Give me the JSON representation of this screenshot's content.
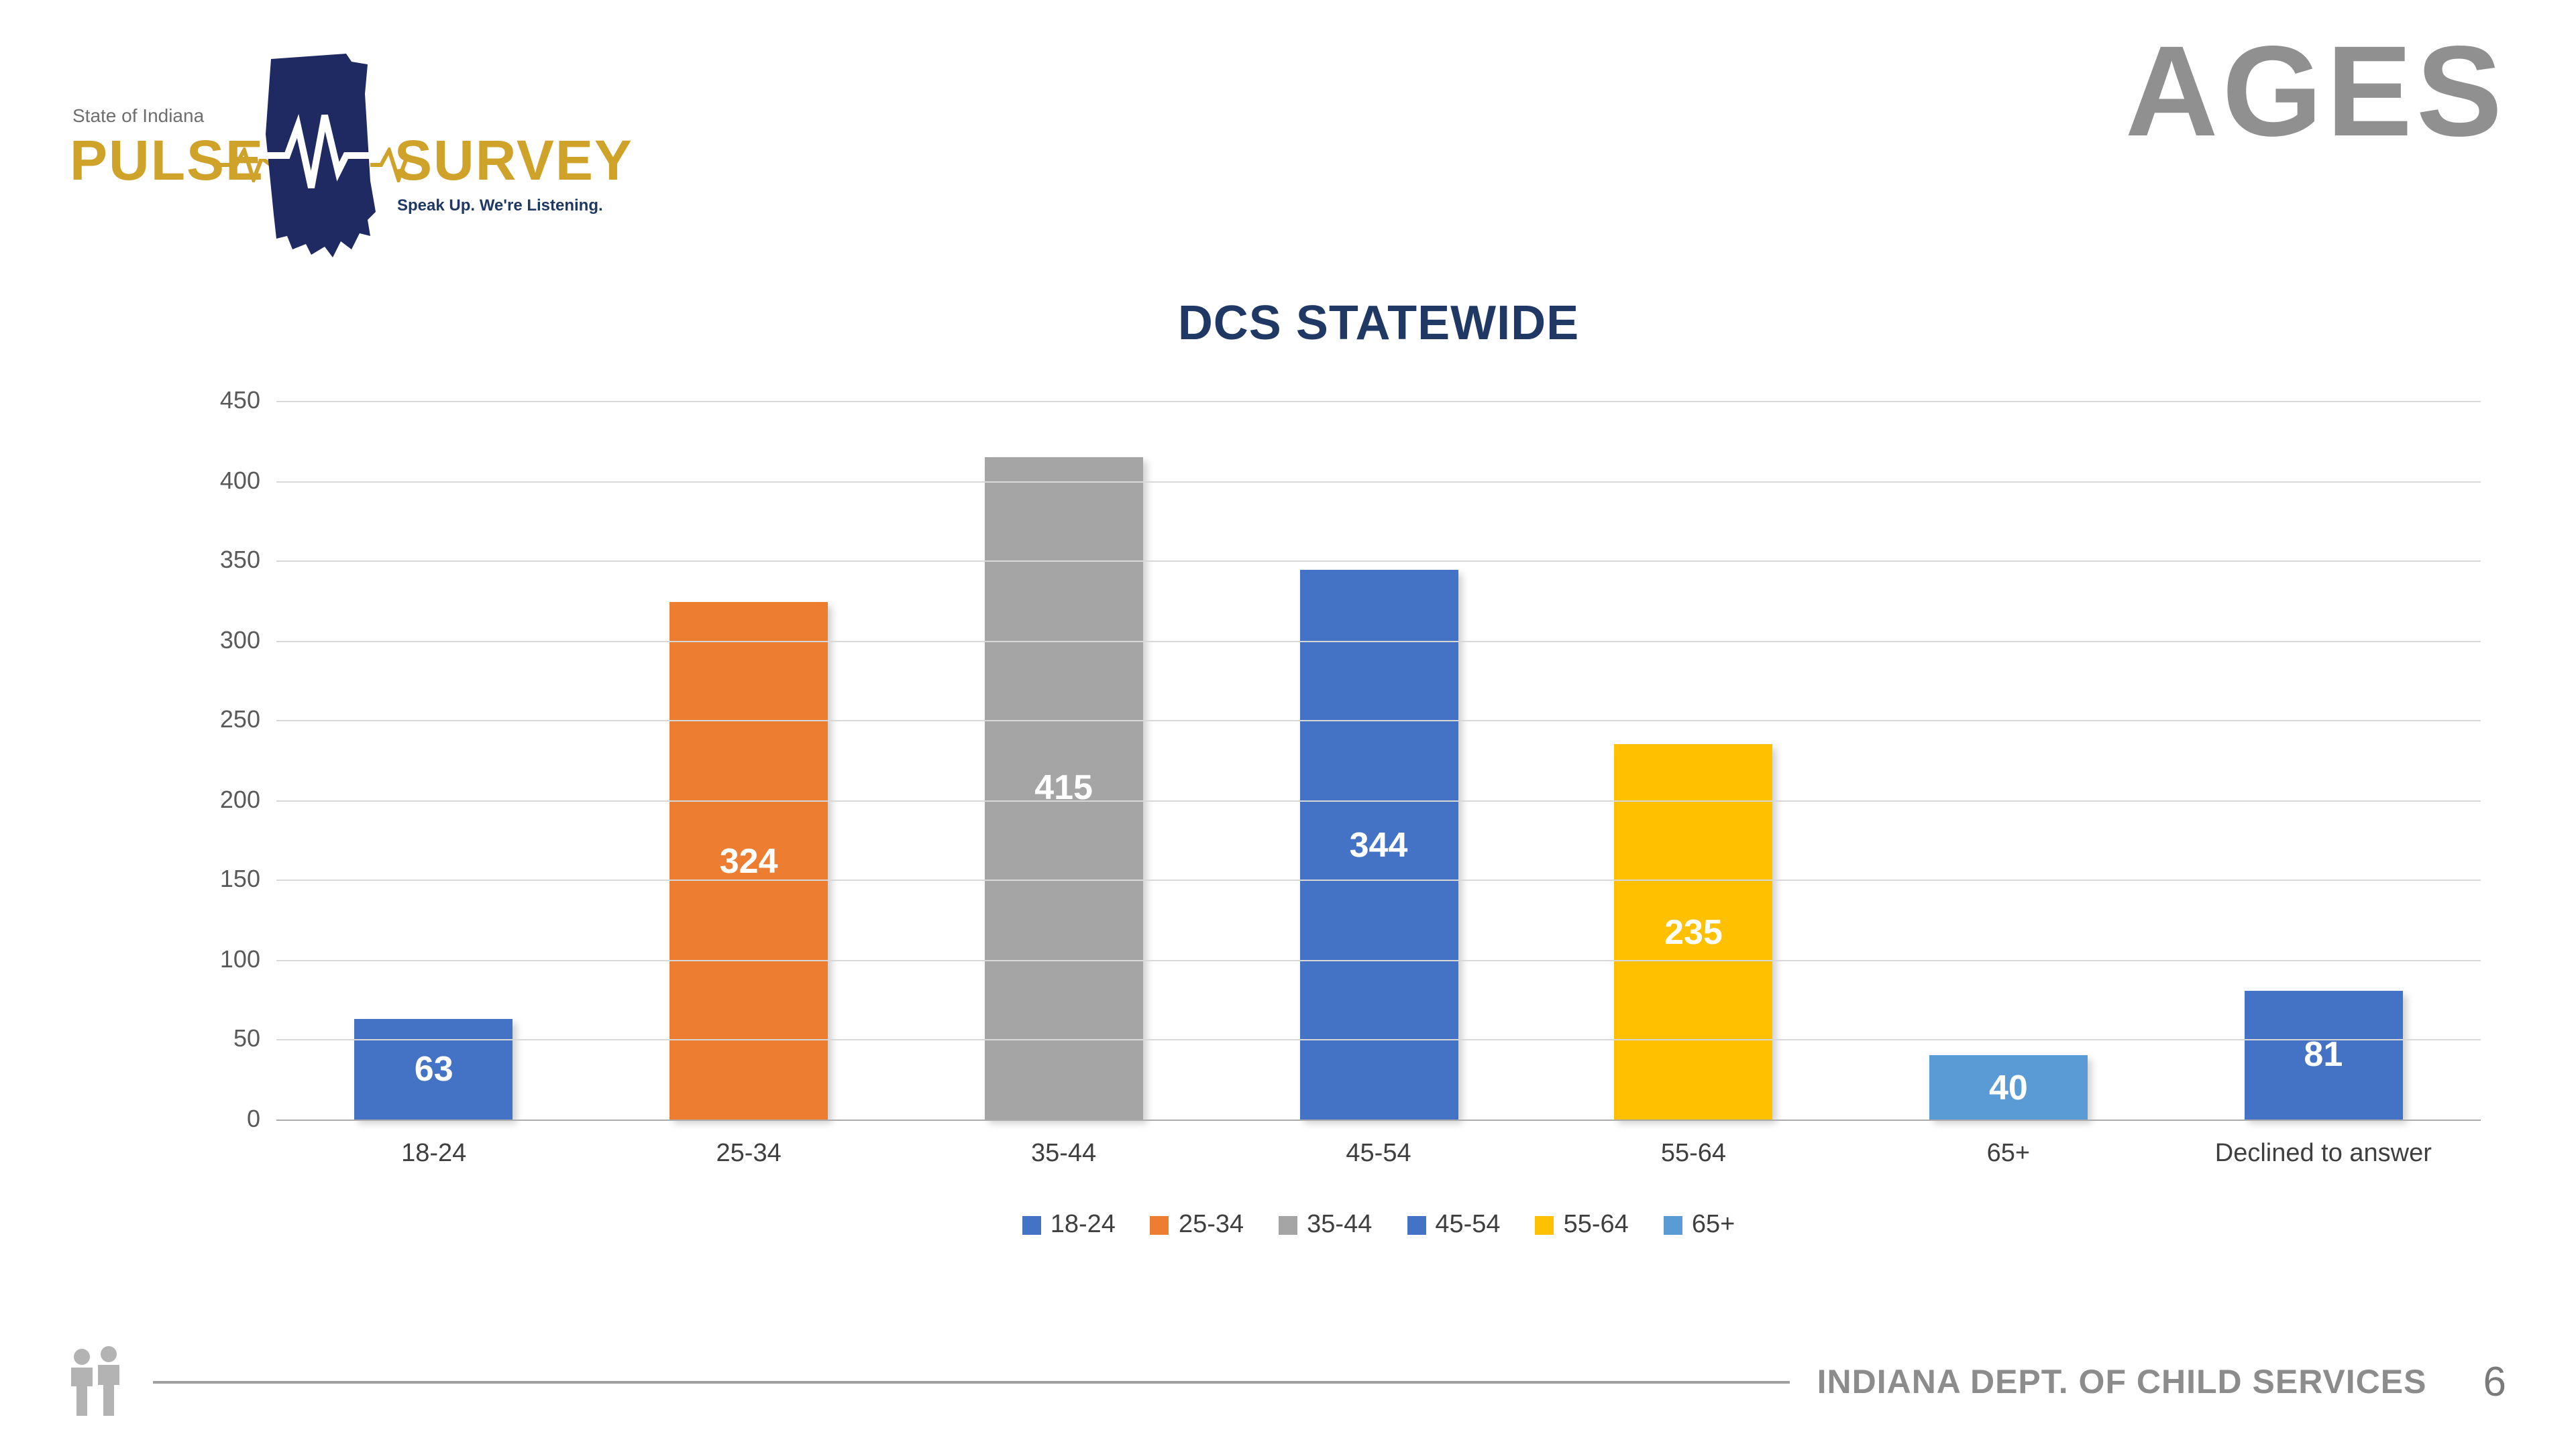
{
  "header": {
    "logo": {
      "state_label": "State of Indiana",
      "pulse": "PULSE",
      "survey": "SURVEY",
      "tagline": "Speak Up. We're Listening.",
      "gold_color": "#CFA22A",
      "navy_color": "#1F2A63"
    },
    "page_heading": "AGES"
  },
  "chart_data": {
    "type": "bar",
    "title": "DCS STATEWIDE",
    "categories": [
      "18-24",
      "25-34",
      "35-44",
      "45-54",
      "55-64",
      "65+",
      "Declined to answer"
    ],
    "values": [
      63,
      324,
      415,
      344,
      235,
      40,
      81
    ],
    "colors": [
      "#4472C4",
      "#ED7D31",
      "#A5A5A5",
      "#4472C4",
      "#FFC000",
      "#5B9BD5",
      "#4472C4"
    ],
    "xlabel": "",
    "ylabel": "",
    "ylim": [
      0,
      450
    ],
    "yticks": [
      0,
      50,
      100,
      150,
      200,
      250,
      300,
      350,
      400,
      450
    ],
    "grid": true,
    "legend_position": "bottom",
    "legend": [
      {
        "label": "18-24",
        "color": "#4472C4"
      },
      {
        "label": "25-34",
        "color": "#ED7D31"
      },
      {
        "label": "35-44",
        "color": "#A5A5A5"
      },
      {
        "label": "45-54",
        "color": "#4472C4"
      },
      {
        "label": "55-64",
        "color": "#FFC000"
      },
      {
        "label": "65+",
        "color": "#5B9BD5"
      }
    ],
    "title_color": "#1F3864"
  },
  "footer": {
    "department": "INDIANA DEPT. OF CHILD SERVICES",
    "page_number": "6"
  }
}
